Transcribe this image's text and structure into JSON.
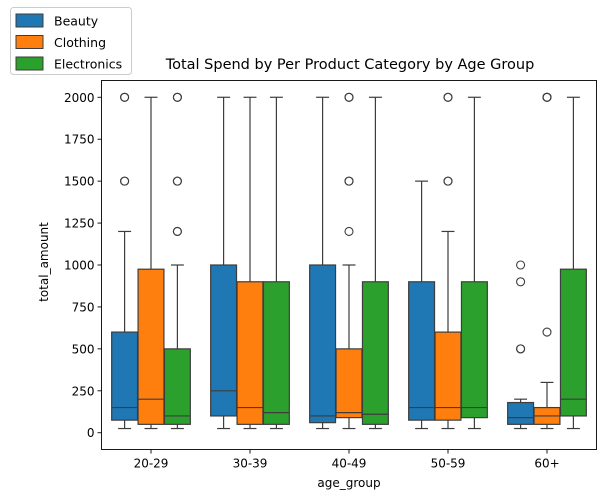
{
  "chart_data": {
    "type": "box",
    "title": "Total Spend by Per Product Category by Age Group",
    "xlabel": "age_group",
    "ylabel": "total_amount",
    "categories": [
      "20-29",
      "30-39",
      "40-49",
      "50-59",
      "60+"
    ],
    "yticks": [
      0,
      250,
      500,
      750,
      1000,
      1250,
      1500,
      1750,
      2000
    ],
    "ylim": [
      -100,
      2100
    ],
    "legend": "top-left",
    "grid": false,
    "series": [
      {
        "name": "Beauty",
        "color": "#1f77b4",
        "boxes": [
          {
            "whislo": 25,
            "q1": 75,
            "med": 150,
            "q3": 600,
            "whishi": 1200,
            "fliers": [
              1500,
              1500,
              2000,
              2000
            ]
          },
          {
            "whislo": 25,
            "q1": 100,
            "med": 250,
            "q3": 1000,
            "whishi": 2000,
            "fliers": []
          },
          {
            "whislo": 25,
            "q1": 60,
            "med": 100,
            "q3": 1000,
            "whishi": 2000,
            "fliers": []
          },
          {
            "whislo": 25,
            "q1": 75,
            "med": 150,
            "q3": 900,
            "whishi": 1500,
            "fliers": []
          },
          {
            "whislo": 25,
            "q1": 50,
            "med": 90,
            "q3": 180,
            "whishi": 200,
            "fliers": [
              500,
              500,
              900,
              1000
            ]
          }
        ]
      },
      {
        "name": "Clothing",
        "color": "#ff7f0e",
        "boxes": [
          {
            "whislo": 25,
            "q1": 50,
            "med": 200,
            "q3": 975,
            "whishi": 2000,
            "fliers": []
          },
          {
            "whislo": 25,
            "q1": 50,
            "med": 150,
            "q3": 900,
            "whishi": 2000,
            "fliers": []
          },
          {
            "whislo": 25,
            "q1": 90,
            "med": 120,
            "q3": 500,
            "whishi": 1000,
            "fliers": [
              1200,
              1500,
              1500,
              2000,
              2000
            ]
          },
          {
            "whislo": 25,
            "q1": 75,
            "med": 150,
            "q3": 600,
            "whishi": 1200,
            "fliers": [
              1500,
              1500,
              2000,
              2000
            ]
          },
          {
            "whislo": 25,
            "q1": 50,
            "med": 100,
            "q3": 150,
            "whishi": 300,
            "fliers": [
              600,
              2000,
              2000,
              2000
            ]
          }
        ]
      },
      {
        "name": "Electronics",
        "color": "#2ca02c",
        "boxes": [
          {
            "whislo": 25,
            "q1": 50,
            "med": 100,
            "q3": 500,
            "whishi": 1000,
            "fliers": [
              1200,
              1200,
              1500,
              1500,
              2000,
              2000
            ]
          },
          {
            "whislo": 25,
            "q1": 50,
            "med": 120,
            "q3": 900,
            "whishi": 2000,
            "fliers": []
          },
          {
            "whislo": 25,
            "q1": 50,
            "med": 110,
            "q3": 900,
            "whishi": 2000,
            "fliers": []
          },
          {
            "whislo": 25,
            "q1": 90,
            "med": 150,
            "q3": 900,
            "whishi": 2000,
            "fliers": []
          },
          {
            "whislo": 25,
            "q1": 100,
            "med": 200,
            "q3": 975,
            "whishi": 2000,
            "fliers": []
          }
        ]
      }
    ]
  }
}
